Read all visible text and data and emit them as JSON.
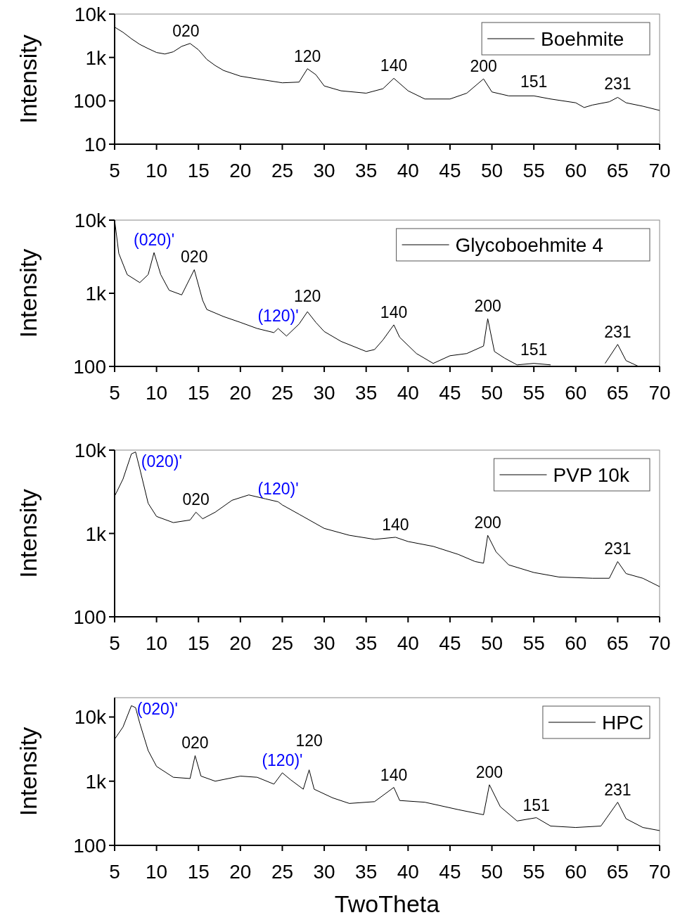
{
  "chart_data": [
    {
      "type": "line",
      "ylabel": "Intensity",
      "log": "y",
      "legend": "top right",
      "xlim": [
        5,
        70
      ],
      "ylim": [
        10,
        10000
      ],
      "xticks": [
        5,
        10,
        15,
        20,
        25,
        30,
        35,
        40,
        45,
        50,
        55,
        60,
        65,
        70
      ],
      "yticks": [
        {
          "value": 10,
          "label": "10"
        },
        {
          "value": 100,
          "label": "100"
        },
        {
          "value": 1000,
          "label": "1k"
        },
        {
          "value": 10000,
          "label": "10k"
        }
      ],
      "series": [
        {
          "name": "Boehmite",
          "color": "#000000",
          "x": [
            5,
            6,
            7,
            8,
            9,
            10,
            11,
            12,
            13,
            14,
            15,
            16,
            17,
            18,
            20,
            22,
            25,
            27,
            28,
            29,
            30,
            32,
            35,
            37,
            38.3,
            40,
            42,
            45,
            47,
            49,
            50,
            52,
            55,
            57,
            60,
            61,
            62,
            64,
            65,
            66,
            68,
            70
          ],
          "values": [
            5000,
            3800,
            2700,
            2000,
            1600,
            1300,
            1200,
            1350,
            1800,
            2100,
            1500,
            900,
            650,
            500,
            370,
            320,
            260,
            270,
            550,
            400,
            220,
            170,
            150,
            190,
            330,
            170,
            110,
            110,
            150,
            320,
            160,
            130,
            130,
            110,
            90,
            70,
            80,
            95,
            120,
            90,
            75,
            60
          ]
        }
      ],
      "annotations": [
        {
          "text": "020",
          "x": 13.5,
          "y": 2100
        },
        {
          "text": "120",
          "x": 28,
          "y": 550
        },
        {
          "text": "140",
          "x": 38.3,
          "y": 330
        },
        {
          "text": "200",
          "x": 49,
          "y": 320
        },
        {
          "text": "151",
          "x": 55,
          "y": 140
        },
        {
          "text": "231",
          "x": 65,
          "y": 125
        }
      ]
    },
    {
      "type": "line",
      "ylabel": "Intensity",
      "log": "y",
      "legend": "top right",
      "xlim": [
        5,
        70
      ],
      "ylim": [
        100,
        10000
      ],
      "xticks": [
        5,
        10,
        15,
        20,
        25,
        30,
        35,
        40,
        45,
        50,
        55,
        60,
        65,
        70
      ],
      "yticks": [
        {
          "value": 100,
          "label": "100"
        },
        {
          "value": 1000,
          "label": "1k"
        },
        {
          "value": 10000,
          "label": "10k"
        }
      ],
      "series": [
        {
          "name": "Glycoboehmite 4",
          "color": "#000000",
          "x": [
            5,
            5.5,
            6.5,
            8,
            9,
            9.7,
            10.5,
            11.5,
            13,
            14.5,
            15.5,
            16,
            18,
            20,
            22,
            24,
            24.5,
            25.5,
            27,
            28,
            29,
            30,
            32,
            35,
            36,
            37,
            38.3,
            39,
            41,
            43,
            45,
            47,
            49,
            49.5,
            50.3,
            51.5,
            53,
            55,
            57,
            57.5,
            63.5,
            65,
            66,
            67.5
          ],
          "values": [
            10000,
            3500,
            1800,
            1400,
            1800,
            3600,
            1800,
            1100,
            950,
            2100,
            800,
            600,
            480,
            400,
            330,
            290,
            330,
            260,
            380,
            560,
            400,
            300,
            220,
            160,
            170,
            230,
            370,
            250,
            150,
            110,
            140,
            150,
            190,
            450,
            160,
            130,
            105,
            110,
            105,
            null,
            110,
            200,
            120,
            100
          ]
        }
      ],
      "annotations": [
        {
          "text": "(020)'",
          "x": 9.7,
          "y": 3600
        },
        {
          "text": "020",
          "x": 14.5,
          "y": 2100
        },
        {
          "text": "(120)'",
          "x": 24.5,
          "y": 330
        },
        {
          "text": "120",
          "x": 28,
          "y": 560
        },
        {
          "text": "140",
          "x": 38.3,
          "y": 370
        },
        {
          "text": "200",
          "x": 49.5,
          "y": 450
        },
        {
          "text": "151",
          "x": 55,
          "y": 115
        },
        {
          "text": "231",
          "x": 65,
          "y": 200
        }
      ]
    },
    {
      "type": "line",
      "ylabel": "Intensity",
      "log": "y",
      "legend": "top right",
      "xlim": [
        5,
        70
      ],
      "ylim": [
        100,
        10000
      ],
      "xticks": [
        5,
        10,
        15,
        20,
        25,
        30,
        35,
        40,
        45,
        50,
        55,
        60,
        65,
        70
      ],
      "yticks": [
        {
          "value": 100,
          "label": "100"
        },
        {
          "value": 1000,
          "label": "1k"
        },
        {
          "value": 10000,
          "label": "10k"
        }
      ],
      "series": [
        {
          "name": "PVP 10k",
          "color": "#000000",
          "x": [
            5,
            6,
            7,
            7.5,
            8,
            9,
            10,
            12,
            14,
            14.7,
            15.5,
            17,
            19,
            21,
            23,
            24.5,
            25,
            27,
            30,
            33,
            36,
            38.5,
            40,
            43,
            46,
            48,
            49,
            49.5,
            50.5,
            52,
            55,
            58,
            62,
            64,
            65,
            66,
            68,
            70
          ],
          "values": [
            2800,
            4500,
            9000,
            9500,
            6000,
            2300,
            1600,
            1350,
            1450,
            1800,
            1500,
            1800,
            2500,
            2900,
            2600,
            2400,
            2200,
            1700,
            1150,
            950,
            850,
            900,
            800,
            700,
            560,
            460,
            440,
            950,
            600,
            420,
            340,
            300,
            290,
            290,
            460,
            330,
            290,
            230
          ]
        }
      ],
      "annotations": [
        {
          "text": "(020)'",
          "x": 7.5,
          "y": 9500
        },
        {
          "text": "020",
          "x": 14.7,
          "y": 1800
        },
        {
          "text": "(120)'",
          "x": 24.5,
          "y": 2400
        },
        {
          "text": "140",
          "x": 38.5,
          "y": 900
        },
        {
          "text": "200",
          "x": 49.5,
          "y": 950
        },
        {
          "text": "231",
          "x": 65,
          "y": 460
        }
      ]
    },
    {
      "type": "line",
      "ylabel": "Intensity",
      "xlabel": "TwoTheta",
      "log": "y",
      "legend": "top right",
      "xlim": [
        5,
        70
      ],
      "ylim": [
        100,
        20000
      ],
      "xticks": [
        5,
        10,
        15,
        20,
        25,
        30,
        35,
        40,
        45,
        50,
        55,
        60,
        65,
        70
      ],
      "yticks": [
        {
          "value": 100,
          "label": "100"
        },
        {
          "value": 1000,
          "label": "1k"
        },
        {
          "value": 10000,
          "label": "10k"
        }
      ],
      "series": [
        {
          "name": "HPC",
          "color": "#000000",
          "x": [
            5,
            6,
            7,
            7.5,
            8,
            9,
            10,
            12,
            14,
            14.6,
            15.3,
            17,
            20,
            22,
            24,
            25,
            26,
            27.5,
            28.2,
            28.8,
            31,
            33,
            36,
            38.3,
            39,
            42,
            46,
            49,
            49.7,
            51,
            53,
            55.3,
            57,
            60,
            63,
            65,
            66,
            68,
            70
          ],
          "values": [
            4500,
            7000,
            15000,
            14000,
            8000,
            3000,
            1700,
            1150,
            1100,
            2500,
            1200,
            1000,
            1200,
            1150,
            900,
            1350,
            1050,
            750,
            1500,
            750,
            550,
            450,
            480,
            800,
            500,
            470,
            360,
            300,
            880,
            400,
            240,
            270,
            200,
            190,
            200,
            470,
            260,
            190,
            170
          ]
        }
      ],
      "annotations": [
        {
          "text": "(020)'",
          "x": 7,
          "y": 15000
        },
        {
          "text": "020",
          "x": 14.6,
          "y": 2500
        },
        {
          "text": "(120)'",
          "x": 25,
          "y": 1350
        },
        {
          "text": "120",
          "x": 28.2,
          "y": 1500
        },
        {
          "text": "140",
          "x": 38.3,
          "y": 800
        },
        {
          "text": "200",
          "x": 49.7,
          "y": 880
        },
        {
          "text": "151",
          "x": 55.3,
          "y": 270
        },
        {
          "text": "231",
          "x": 65,
          "y": 470
        }
      ]
    }
  ]
}
